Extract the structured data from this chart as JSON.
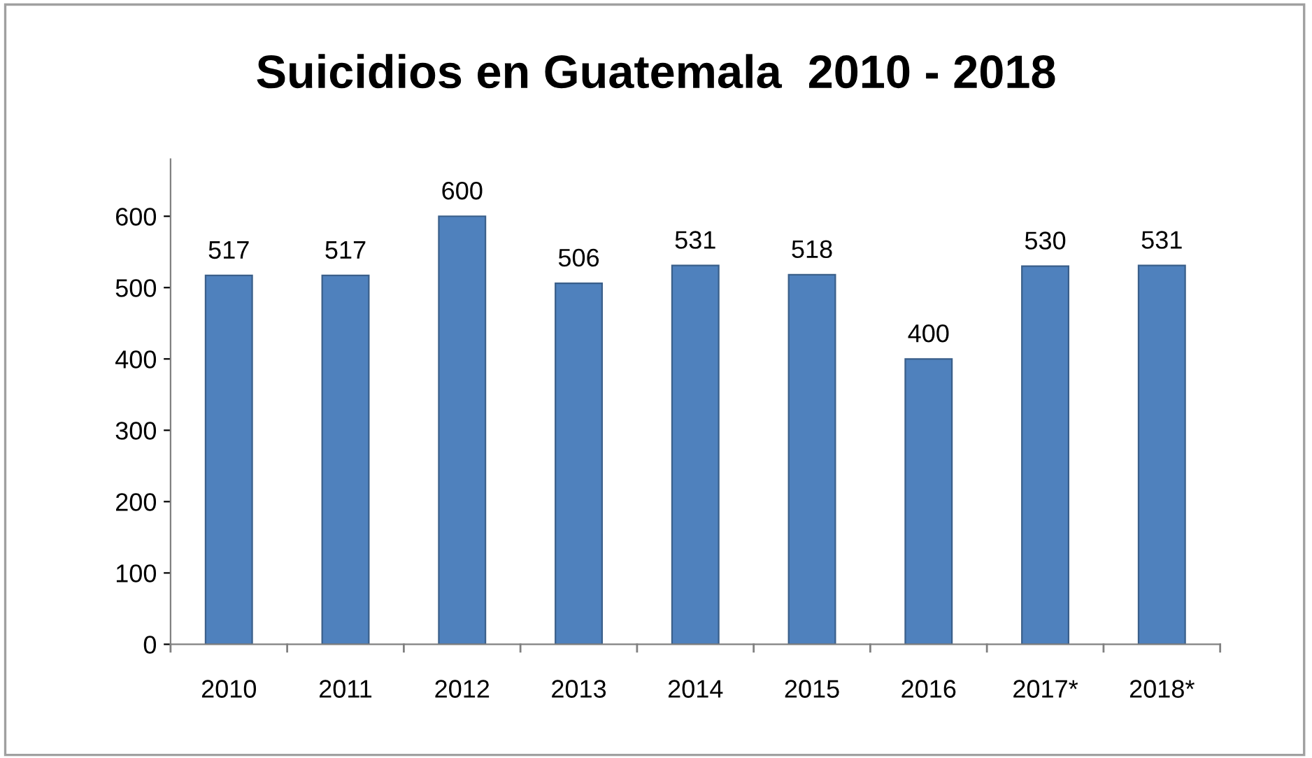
{
  "chart_data": {
    "type": "bar",
    "title": "Suicidios en Guatemala  2010 - 2018",
    "categories": [
      "2010",
      "2011",
      "2012",
      "2013",
      "2014",
      "2015",
      "2016",
      "2017*",
      "2018*"
    ],
    "values": [
      517,
      517,
      600,
      506,
      531,
      518,
      400,
      530,
      531
    ],
    "color": "#4f81bd",
    "ylim": [
      0,
      680
    ],
    "yticks": [
      0,
      100,
      200,
      300,
      400,
      500,
      600
    ],
    "data_labels": true,
    "grid": false
  }
}
